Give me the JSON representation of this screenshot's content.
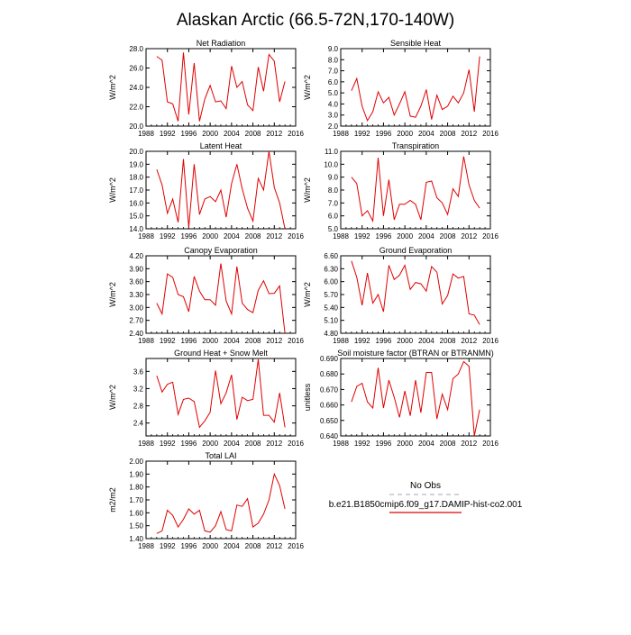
{
  "title": "Alaskan Arctic (66.5-72N,170-140W)",
  "colors": {
    "model": "#e00000",
    "obs": "#b8b8c8",
    "axis": "#000000"
  },
  "legend": {
    "obs_label": "No Obs",
    "model_label": "b.e21.B1850cmip6.f09_g17.DAMIP-hist-co2.001"
  },
  "chart_data": [
    {
      "type": "line",
      "title": "Net Radiation",
      "ylabel": "W/m^2",
      "xlim": [
        1988,
        2016
      ],
      "ylim": [
        20,
        28
      ],
      "xticks": [
        1988,
        1992,
        1996,
        2000,
        2004,
        2008,
        2012,
        2016
      ],
      "yticks": [
        "20.0",
        "22.0",
        "24.0",
        "26.0",
        "28.0"
      ],
      "series": [
        {
          "x": [
            1990,
            1991,
            1992,
            1993,
            1994,
            1995,
            1996,
            1997,
            1998,
            1999,
            2000,
            2001,
            2002,
            2003,
            2004,
            2005,
            2006,
            2007,
            2008,
            2009,
            2010,
            2011,
            2012,
            2013,
            2014
          ],
          "y": [
            27.2,
            26.8,
            22.5,
            22.3,
            20.5,
            27.6,
            21.2,
            26.5,
            20.5,
            22.8,
            24.2,
            22.5,
            22.6,
            21.8,
            26.2,
            24.0,
            24.6,
            22.2,
            21.6,
            26.1,
            23.6,
            27.4,
            26.7,
            22.5,
            24.6
          ]
        }
      ]
    },
    {
      "type": "line",
      "title": "Sensible Heat",
      "ylabel": "W/m^2",
      "xlim": [
        1988,
        2016
      ],
      "ylim": [
        2,
        9
      ],
      "xticks": [
        1988,
        1992,
        1996,
        2000,
        2004,
        2008,
        2012,
        2016
      ],
      "yticks": [
        "2.0",
        "3.0",
        "4.0",
        "5.0",
        "6.0",
        "7.0",
        "8.0",
        "9.0"
      ],
      "series": [
        {
          "x": [
            1990,
            1991,
            1992,
            1993,
            1994,
            1995,
            1996,
            1997,
            1998,
            1999,
            2000,
            2001,
            2002,
            2003,
            2004,
            2005,
            2006,
            2007,
            2008,
            2009,
            2010,
            2011,
            2012,
            2013,
            2014
          ],
          "y": [
            5.2,
            6.3,
            3.8,
            2.5,
            3.3,
            5.1,
            4.1,
            4.6,
            3.0,
            4.0,
            5.1,
            2.9,
            2.8,
            3.8,
            5.3,
            2.6,
            4.8,
            3.5,
            3.8,
            4.7,
            4.1,
            5.0,
            7.1,
            3.3,
            8.3
          ]
        }
      ]
    },
    {
      "type": "line",
      "title": "Latent Heat",
      "ylabel": "W/m^2",
      "xlim": [
        1988,
        2016
      ],
      "ylim": [
        14,
        20
      ],
      "xticks": [
        1988,
        1992,
        1996,
        2000,
        2004,
        2008,
        2012,
        2016
      ],
      "yticks": [
        "14.0",
        "15.0",
        "16.0",
        "17.0",
        "18.0",
        "19.0",
        "20.0"
      ],
      "series": [
        {
          "x": [
            1990,
            1991,
            1992,
            1993,
            1994,
            1995,
            1996,
            1997,
            1998,
            1999,
            2000,
            2001,
            2002,
            2003,
            2004,
            2005,
            2006,
            2007,
            2008,
            2009,
            2010,
            2011,
            2012,
            2013,
            2014
          ],
          "y": [
            18.6,
            17.4,
            15.2,
            16.3,
            14.5,
            19.4,
            14.1,
            19.0,
            15.1,
            16.3,
            16.5,
            16.1,
            17.0,
            14.9,
            17.5,
            19.0,
            17.1,
            15.6,
            14.6,
            17.9,
            17.0,
            20.0,
            17.2,
            16.0,
            14.0
          ]
        }
      ]
    },
    {
      "type": "line",
      "title": "Transpiration",
      "ylabel": "W/m^2",
      "xlim": [
        1988,
        2016
      ],
      "ylim": [
        5,
        11
      ],
      "xticks": [
        1988,
        1992,
        1996,
        2000,
        2004,
        2008,
        2012,
        2016
      ],
      "yticks": [
        "5.0",
        "6.0",
        "7.0",
        "8.0",
        "9.0",
        "10.0",
        "11.0"
      ],
      "series": [
        {
          "x": [
            1990,
            1991,
            1992,
            1993,
            1994,
            1995,
            1996,
            1997,
            1998,
            1999,
            2000,
            2001,
            2002,
            2003,
            2004,
            2005,
            2006,
            2007,
            2008,
            2009,
            2010,
            2011,
            2012,
            2013,
            2014
          ],
          "y": [
            9.0,
            8.5,
            6.0,
            6.4,
            5.6,
            10.5,
            6.0,
            8.8,
            5.7,
            6.9,
            6.9,
            7.2,
            6.9,
            5.7,
            8.6,
            8.7,
            7.4,
            7.0,
            6.1,
            8.1,
            7.5,
            10.6,
            8.4,
            7.2,
            6.6
          ]
        }
      ]
    },
    {
      "type": "line",
      "title": "Canopy Evaporation",
      "ylabel": "W/m^2",
      "xlim": [
        1988,
        2016
      ],
      "ylim": [
        2.4,
        4.2
      ],
      "xticks": [
        1988,
        1992,
        1996,
        2000,
        2004,
        2008,
        2012,
        2016
      ],
      "yticks": [
        "2.40",
        "2.70",
        "3.00",
        "3.30",
        "3.60",
        "3.90",
        "4.20"
      ],
      "series": [
        {
          "x": [
            1990,
            1991,
            1992,
            1993,
            1994,
            1995,
            1996,
            1997,
            1998,
            1999,
            2000,
            2001,
            2002,
            2003,
            2004,
            2005,
            2006,
            2007,
            2008,
            2009,
            2010,
            2011,
            2012,
            2013,
            2014
          ],
          "y": [
            3.1,
            2.85,
            3.78,
            3.7,
            3.3,
            3.25,
            2.9,
            3.72,
            3.38,
            3.18,
            3.18,
            3.05,
            4.02,
            3.15,
            2.85,
            3.95,
            3.1,
            2.95,
            2.88,
            3.4,
            3.62,
            3.32,
            3.33,
            3.5,
            2.4
          ]
        }
      ]
    },
    {
      "type": "line",
      "title": "Ground Evaporation",
      "ylabel": "W/m^2",
      "xlim": [
        1988,
        2016
      ],
      "ylim": [
        4.8,
        6.6
      ],
      "xticks": [
        1988,
        1992,
        1996,
        2000,
        2004,
        2008,
        2012,
        2016
      ],
      "yticks": [
        "4.80",
        "5.10",
        "5.40",
        "5.70",
        "6.00",
        "6.30",
        "6.60"
      ],
      "series": [
        {
          "x": [
            1990,
            1991,
            1992,
            1993,
            1994,
            1995,
            1996,
            1997,
            1998,
            1999,
            2000,
            2001,
            2002,
            2003,
            2004,
            2005,
            2006,
            2007,
            2008,
            2009,
            2010,
            2011,
            2012,
            2013,
            2014
          ],
          "y": [
            6.48,
            6.1,
            5.45,
            6.2,
            5.5,
            5.7,
            5.3,
            6.38,
            6.05,
            6.15,
            6.38,
            5.82,
            5.98,
            5.95,
            5.78,
            6.35,
            6.22,
            5.48,
            5.68,
            6.18,
            6.08,
            6.12,
            5.25,
            5.22,
            5.0
          ]
        }
      ]
    },
    {
      "type": "line",
      "title": "Ground Heat + Snow Melt",
      "ylabel": "W/m^2",
      "xlim": [
        1988,
        2016
      ],
      "ylim": [
        2.1,
        3.9
      ],
      "xticks": [
        1988,
        1992,
        1996,
        2000,
        2004,
        2008,
        2012,
        2016
      ],
      "yticks": [
        "2.4",
        "2.8",
        "3.2",
        "3.6"
      ],
      "series": [
        {
          "x": [
            1990,
            1991,
            1992,
            1993,
            1994,
            1995,
            1996,
            1997,
            1998,
            1999,
            2000,
            2001,
            2002,
            2003,
            2004,
            2005,
            2006,
            2007,
            2008,
            2009,
            2010,
            2011,
            2012,
            2013,
            2014
          ],
          "y": [
            3.5,
            3.12,
            3.3,
            3.35,
            2.6,
            2.95,
            2.98,
            2.9,
            2.3,
            2.45,
            2.65,
            3.62,
            2.85,
            3.1,
            3.52,
            2.48,
            3.0,
            2.92,
            2.95,
            3.88,
            2.58,
            2.58,
            2.42,
            3.1,
            2.3
          ]
        }
      ]
    },
    {
      "type": "line",
      "title": "Soil moisture factor (BTRAN or BTRANMN)",
      "ylabel": "unitless",
      "xlim": [
        1988,
        2016
      ],
      "ylim": [
        0.64,
        0.69
      ],
      "xticks": [
        1988,
        1992,
        1996,
        2000,
        2004,
        2008,
        2012,
        2016
      ],
      "yticks": [
        "0.640",
        "0.650",
        "0.660",
        "0.670",
        "0.680",
        "0.690"
      ],
      "series": [
        {
          "x": [
            1990,
            1991,
            1992,
            1993,
            1994,
            1995,
            1996,
            1997,
            1998,
            1999,
            2000,
            2001,
            2002,
            2003,
            2004,
            2005,
            2006,
            2007,
            2008,
            2009,
            2010,
            2011,
            2012,
            2013,
            2014
          ],
          "y": [
            0.662,
            0.672,
            0.674,
            0.662,
            0.658,
            0.684,
            0.658,
            0.676,
            0.665,
            0.652,
            0.669,
            0.653,
            0.676,
            0.655,
            0.681,
            0.681,
            0.651,
            0.667,
            0.657,
            0.677,
            0.68,
            0.688,
            0.685,
            0.64,
            0.657
          ]
        }
      ]
    },
    {
      "type": "line",
      "title": "Total LAI",
      "ylabel": "m2/m2",
      "xlim": [
        1988,
        2016
      ],
      "ylim": [
        1.4,
        2.0
      ],
      "xticks": [
        1988,
        1992,
        1996,
        2000,
        2004,
        2008,
        2012,
        2016
      ],
      "yticks": [
        "1.40",
        "1.50",
        "1.60",
        "1.70",
        "1.80",
        "1.90",
        "2.00"
      ],
      "series": [
        {
          "x": [
            1990,
            1991,
            1992,
            1993,
            1994,
            1995,
            1996,
            1997,
            1998,
            1999,
            2000,
            2001,
            2002,
            2003,
            2004,
            2005,
            2006,
            2007,
            2008,
            2009,
            2010,
            2011,
            2012,
            2013,
            2014
          ],
          "y": [
            1.44,
            1.46,
            1.62,
            1.58,
            1.49,
            1.55,
            1.63,
            1.59,
            1.62,
            1.46,
            1.45,
            1.5,
            1.61,
            1.47,
            1.46,
            1.66,
            1.65,
            1.71,
            1.49,
            1.52,
            1.59,
            1.7,
            1.9,
            1.81,
            1.63
          ]
        }
      ]
    }
  ]
}
